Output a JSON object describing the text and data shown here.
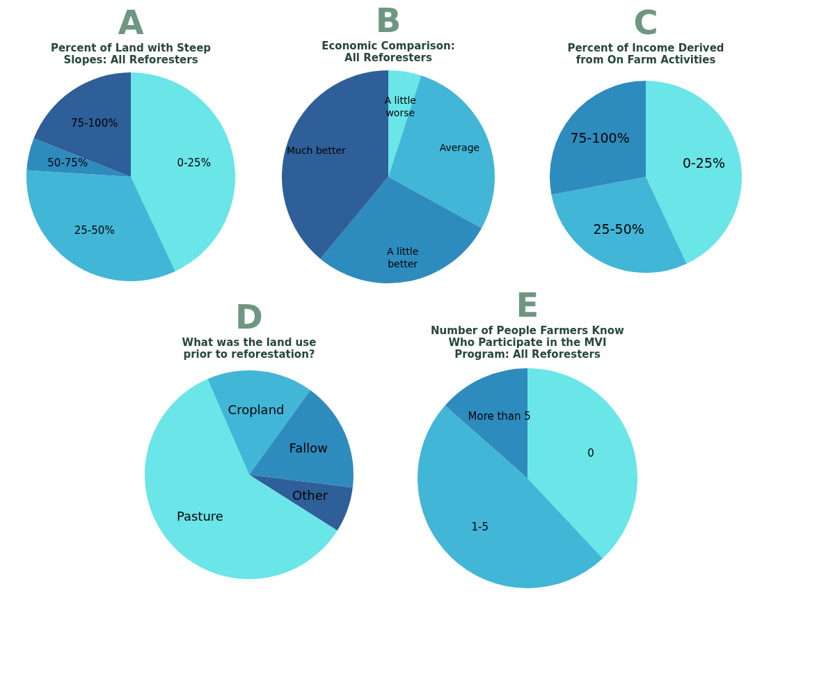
{
  "chart_data": [
    {
      "type": "pie",
      "title": "A",
      "subtitle": "Percent of Land with Steep\nSlopes: All Reforesters",
      "categories": [
        "0-25%",
        "25-50%",
        "50-75%",
        "75-100%"
      ],
      "values": [
        43,
        33,
        5,
        19
      ],
      "colors": [
        "#6ae5e8",
        "#42b6d6",
        "#2e8bbd",
        "#2e5f98"
      ]
    },
    {
      "type": "pie",
      "title": "B",
      "subtitle": "Economic Comparison:\nAll Reforesters",
      "categories": [
        "A little\nworse",
        "Average",
        "A little\nbetter",
        "Much better"
      ],
      "values": [
        5,
        28,
        28,
        39
      ],
      "colors": [
        "#6ae5e8",
        "#42b6d6",
        "#2e8bbd",
        "#2e5f98"
      ]
    },
    {
      "type": "pie",
      "title": "C",
      "subtitle": "Percent of Income Derived\nfrom On Farm Activities",
      "categories": [
        "0-25%",
        "25-50%",
        "75-100%"
      ],
      "values": [
        43,
        29,
        28
      ],
      "colors": [
        "#6ae5e8",
        "#42b6d6",
        "#2e8bbd"
      ]
    },
    {
      "type": "pie",
      "title": "D",
      "subtitle": "What was the land use\nprior to reforestation?",
      "categories": [
        "Cropland",
        "Fallow",
        "Other",
        "Pasture"
      ],
      "values": [
        16.5,
        17,
        7,
        59.5
      ],
      "colors": [
        "#42b6d6",
        "#2e8bbd",
        "#2e5f98",
        "#6ae5e8"
      ]
    },
    {
      "type": "pie",
      "title": "E",
      "subtitle": "Number of People Farmers Know\nWho Participate in the MVI\nProgram: All Reforesters",
      "categories": [
        "0",
        "1-5",
        "More than 5"
      ],
      "values": [
        38,
        48.5,
        13.5
      ],
      "colors": [
        "#6ae5e8",
        "#42b6d6",
        "#2e8bbd"
      ]
    }
  ]
}
